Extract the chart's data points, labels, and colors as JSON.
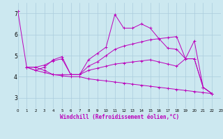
{
  "background_color": "#cce8f0",
  "grid_color": "#aaccdd",
  "line_color": "#bb00bb",
  "xlabel": "Windchill (Refroidissement éolien,°C)",
  "xlim": [
    0,
    23
  ],
  "ylim": [
    2.5,
    7.5
  ],
  "yticks": [
    3,
    4,
    5,
    6,
    7
  ],
  "xticks": [
    0,
    1,
    2,
    3,
    4,
    5,
    6,
    7,
    8,
    9,
    10,
    11,
    12,
    13,
    14,
    15,
    16,
    17,
    18,
    19,
    20,
    21,
    22,
    23
  ],
  "series": [
    {
      "x": [
        0,
        1,
        2,
        3,
        4,
        5,
        6,
        7,
        8,
        9,
        10,
        11,
        12,
        13,
        14,
        15,
        16,
        17,
        18,
        19,
        20,
        21,
        22
      ],
      "y": [
        7.1,
        4.45,
        4.3,
        4.45,
        4.8,
        4.95,
        4.1,
        4.1,
        4.8,
        5.1,
        5.4,
        6.95,
        6.3,
        6.3,
        6.5,
        6.3,
        5.8,
        5.35,
        5.3,
        4.85,
        5.7,
        3.5,
        3.2
      ]
    },
    {
      "x": [
        1,
        2,
        3,
        4,
        5,
        6,
        7,
        8,
        9,
        10,
        11,
        12,
        13,
        14,
        15,
        16,
        17,
        18,
        19,
        20,
        21,
        22
      ],
      "y": [
        4.45,
        4.45,
        4.55,
        4.75,
        4.85,
        4.1,
        4.1,
        4.5,
        4.7,
        5.0,
        5.3,
        5.45,
        5.55,
        5.65,
        5.75,
        5.8,
        5.85,
        5.9,
        4.85,
        4.85,
        3.5,
        3.2
      ]
    },
    {
      "x": [
        1,
        2,
        3,
        4,
        5,
        6,
        7,
        8,
        9,
        10,
        11,
        12,
        13,
        14,
        15,
        16,
        17,
        18,
        19,
        20,
        21,
        22
      ],
      "y": [
        4.45,
        4.45,
        4.3,
        4.1,
        4.1,
        4.1,
        4.1,
        4.3,
        4.4,
        4.5,
        4.6,
        4.65,
        4.7,
        4.75,
        4.8,
        4.7,
        4.6,
        4.5,
        4.85,
        4.85,
        3.5,
        3.2
      ]
    },
    {
      "x": [
        1,
        2,
        3,
        4,
        5,
        6,
        7,
        8,
        9,
        10,
        11,
        12,
        13,
        14,
        15,
        16,
        17,
        18,
        19,
        20,
        21,
        22
      ],
      "y": [
        4.45,
        4.3,
        4.2,
        4.1,
        4.05,
        4.0,
        4.0,
        3.9,
        3.85,
        3.8,
        3.75,
        3.7,
        3.65,
        3.6,
        3.55,
        3.5,
        3.45,
        3.4,
        3.35,
        3.3,
        3.25,
        3.2
      ]
    }
  ]
}
